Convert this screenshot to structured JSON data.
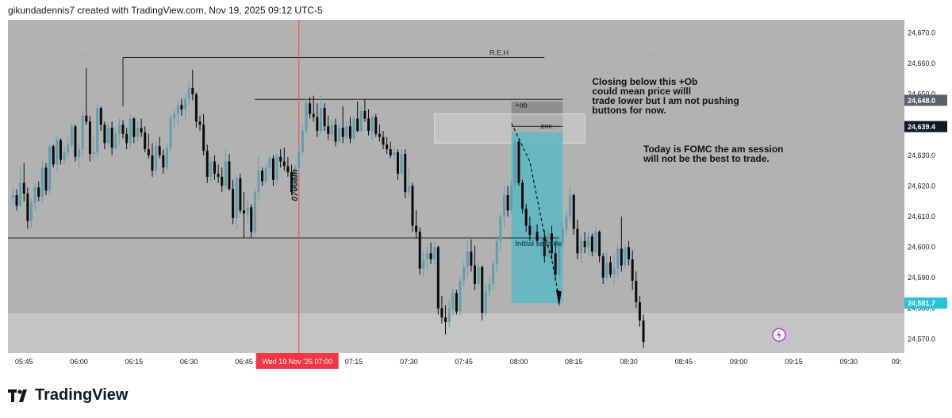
{
  "header": {
    "credit": "gikundadennis7 created with TradingView.com, Nov 19, 2025 09:12 UTC-5"
  },
  "brand": {
    "name": "TradingView",
    "logo_icon": "tradingview-logo-icon"
  },
  "colors": {
    "chart_bg": "#b2b2b2",
    "lower_band_bg": "#c4c4c4",
    "candle_up": "#5f9fae",
    "candle_down": "#0b0b0b",
    "box_fill": "#5ab7c6",
    "ob_box_fill": "#8f8f8f",
    "brk_box_fill": "#d4d4d4",
    "vline": "#ff3b3b",
    "label_bg_dark": "#131722",
    "label_bg_gray": "#5d606b",
    "label_bg_cyan": "#25c3d6"
  },
  "annotations": {
    "reh": "R.E.H",
    "ob": "+ob",
    "brk": "BRK.",
    "initial_sellside": "Initial sellside",
    "time_0700": "0700am",
    "note1": [
      "Closing below this +Ob",
      "could mean price willl",
      "trade lower but I am not pushing",
      "buttons for now."
    ],
    "note2": [
      "Today is FOMC the am session",
      "will not be the best to trade."
    ]
  },
  "price_labels": {
    "ob_level": "24,648.0",
    "brk_level": "24,639.4",
    "bottom_level": "24,581.7"
  },
  "x_axis_highlight": "Wed 19 Nov '25   07:00",
  "chart_data": {
    "type": "candlestick",
    "title": "",
    "xlabel": "",
    "ylabel": "",
    "ylim": [
      24565.4,
      24674.3
    ],
    "y_ticks": [
      "24,670.0",
      "24,660.0",
      "24,650.0",
      "24,640.0",
      "24,630.0",
      "24,620.0",
      "24,610.0",
      "24,600.0",
      "24,590.0",
      "24,580.0",
      "24,570.0"
    ],
    "x_ticks": [
      "05:45",
      "06:00",
      "06:15",
      "06:30",
      "06:45",
      "07:00",
      "07:15",
      "07:30",
      "07:45",
      "08:00",
      "08:15",
      "08:30",
      "08:45",
      "09:00",
      "09:15",
      "09:30",
      "09:"
    ],
    "x_start": "05:42",
    "minutes_per_candle": 1,
    "candles": [
      {
        "o": 24616.0,
        "h": 24619.0,
        "l": 24614.0,
        "c": 24617.0
      },
      {
        "o": 24617.0,
        "h": 24619.0,
        "l": 24612.0,
        "c": 24613.5
      },
      {
        "o": 24613.5,
        "h": 24626.0,
        "l": 24613.0,
        "c": 24621.0
      },
      {
        "o": 24621.0,
        "h": 24627.5,
        "l": 24615.0,
        "c": 24617.5
      },
      {
        "o": 24617.5,
        "h": 24619.5,
        "l": 24606.0,
        "c": 24608.5
      },
      {
        "o": 24608.5,
        "h": 24616.0,
        "l": 24606.5,
        "c": 24614.5
      },
      {
        "o": 24614.5,
        "h": 24621.0,
        "l": 24612.0,
        "c": 24619.5
      },
      {
        "o": 24619.5,
        "h": 24621.5,
        "l": 24615.0,
        "c": 24616.5
      },
      {
        "o": 24616.5,
        "h": 24628.5,
        "l": 24614.5,
        "c": 24626.0
      },
      {
        "o": 24626.0,
        "h": 24627.5,
        "l": 24617.0,
        "c": 24618.5
      },
      {
        "o": 24618.5,
        "h": 24633.5,
        "l": 24617.5,
        "c": 24633.0
      },
      {
        "o": 24633.0,
        "h": 24633.5,
        "l": 24626.0,
        "c": 24627.0
      },
      {
        "o": 24627.0,
        "h": 24636.5,
        "l": 24624.5,
        "c": 24635.0
      },
      {
        "o": 24635.0,
        "h": 24635.5,
        "l": 24627.0,
        "c": 24628.5
      },
      {
        "o": 24628.5,
        "h": 24633.0,
        "l": 24627.0,
        "c": 24631.0
      },
      {
        "o": 24631.0,
        "h": 24636.0,
        "l": 24629.0,
        "c": 24633.5
      },
      {
        "o": 24633.5,
        "h": 24640.5,
        "l": 24632.5,
        "c": 24639.5
      },
      {
        "o": 24639.5,
        "h": 24640.0,
        "l": 24628.0,
        "c": 24629.5
      },
      {
        "o": 24629.5,
        "h": 24634.0,
        "l": 24626.0,
        "c": 24632.0
      },
      {
        "o": 24632.0,
        "h": 24644.5,
        "l": 24630.0,
        "c": 24643.0
      },
      {
        "o": 24643.0,
        "h": 24658.5,
        "l": 24640.0,
        "c": 24641.0
      },
      {
        "o": 24641.0,
        "h": 24643.0,
        "l": 24628.0,
        "c": 24630.5
      },
      {
        "o": 24630.5,
        "h": 24636.0,
        "l": 24628.0,
        "c": 24631.0
      },
      {
        "o": 24631.0,
        "h": 24647.0,
        "l": 24629.0,
        "c": 24645.5
      },
      {
        "o": 24645.5,
        "h": 24646.0,
        "l": 24638.0,
        "c": 24640.0
      },
      {
        "o": 24640.0,
        "h": 24641.0,
        "l": 24632.0,
        "c": 24634.0
      },
      {
        "o": 24634.0,
        "h": 24640.5,
        "l": 24633.0,
        "c": 24639.0
      },
      {
        "o": 24639.0,
        "h": 24641.0,
        "l": 24630.0,
        "c": 24632.5
      },
      {
        "o": 24632.5,
        "h": 24638.5,
        "l": 24631.5,
        "c": 24637.0
      },
      {
        "o": 24637.0,
        "h": 24642.0,
        "l": 24634.0,
        "c": 24640.0
      },
      {
        "o": 24640.0,
        "h": 24641.5,
        "l": 24635.5,
        "c": 24637.0
      },
      {
        "o": 24637.0,
        "h": 24639.0,
        "l": 24632.0,
        "c": 24634.0
      },
      {
        "o": 24634.0,
        "h": 24643.5,
        "l": 24632.5,
        "c": 24642.0
      },
      {
        "o": 24642.0,
        "h": 24642.5,
        "l": 24634.0,
        "c": 24636.0
      },
      {
        "o": 24636.0,
        "h": 24641.0,
        "l": 24634.5,
        "c": 24639.0
      },
      {
        "o": 24639.0,
        "h": 24642.0,
        "l": 24636.0,
        "c": 24637.5
      },
      {
        "o": 24637.5,
        "h": 24639.5,
        "l": 24631.0,
        "c": 24632.0
      },
      {
        "o": 24632.0,
        "h": 24637.0,
        "l": 24629.0,
        "c": 24630.0
      },
      {
        "o": 24630.0,
        "h": 24634.0,
        "l": 24623.0,
        "c": 24625.0
      },
      {
        "o": 24625.0,
        "h": 24634.5,
        "l": 24623.5,
        "c": 24633.0
      },
      {
        "o": 24633.0,
        "h": 24636.0,
        "l": 24629.0,
        "c": 24630.0
      },
      {
        "o": 24630.0,
        "h": 24632.0,
        "l": 24624.0,
        "c": 24626.0
      },
      {
        "o": 24626.0,
        "h": 24634.0,
        "l": 24625.0,
        "c": 24632.5
      },
      {
        "o": 24632.5,
        "h": 24643.5,
        "l": 24631.0,
        "c": 24642.0
      },
      {
        "o": 24642.0,
        "h": 24645.0,
        "l": 24639.0,
        "c": 24643.5
      },
      {
        "o": 24643.5,
        "h": 24648.0,
        "l": 24640.0,
        "c": 24646.5
      },
      {
        "o": 24646.5,
        "h": 24648.5,
        "l": 24643.0,
        "c": 24645.0
      },
      {
        "o": 24645.0,
        "h": 24650.5,
        "l": 24642.0,
        "c": 24648.5
      },
      {
        "o": 24648.5,
        "h": 24654.0,
        "l": 24646.5,
        "c": 24652.0
      },
      {
        "o": 24652.0,
        "h": 24658.0,
        "l": 24648.0,
        "c": 24650.0
      },
      {
        "o": 24650.0,
        "h": 24650.5,
        "l": 24639.0,
        "c": 24641.0
      },
      {
        "o": 24641.0,
        "h": 24643.0,
        "l": 24638.0,
        "c": 24640.0
      },
      {
        "o": 24640.0,
        "h": 24643.5,
        "l": 24630.0,
        "c": 24631.5
      },
      {
        "o": 24631.5,
        "h": 24633.5,
        "l": 24621.0,
        "c": 24623.0
      },
      {
        "o": 24623.0,
        "h": 24629.5,
        "l": 24621.5,
        "c": 24628.0
      },
      {
        "o": 24628.0,
        "h": 24630.0,
        "l": 24622.0,
        "c": 24624.0
      },
      {
        "o": 24624.0,
        "h": 24627.0,
        "l": 24621.0,
        "c": 24623.0
      },
      {
        "o": 24623.0,
        "h": 24626.0,
        "l": 24618.0,
        "c": 24620.0
      },
      {
        "o": 24620.0,
        "h": 24632.0,
        "l": 24619.0,
        "c": 24628.0
      },
      {
        "o": 24628.0,
        "h": 24630.5,
        "l": 24618.5,
        "c": 24619.0
      },
      {
        "o": 24619.0,
        "h": 24622.0,
        "l": 24607.5,
        "c": 24609.5
      },
      {
        "o": 24609.5,
        "h": 24623.5,
        "l": 24606.0,
        "c": 24622.5
      },
      {
        "o": 24622.5,
        "h": 24624.0,
        "l": 24611.0,
        "c": 24612.0
      },
      {
        "o": 24612.0,
        "h": 24618.0,
        "l": 24603.0,
        "c": 24611.0
      },
      {
        "o": 24611.0,
        "h": 24615.5,
        "l": 24608.0,
        "c": 24613.0
      },
      {
        "o": 24613.0,
        "h": 24614.0,
        "l": 24603.0,
        "c": 24605.0
      },
      {
        "o": 24605.0,
        "h": 24619.0,
        "l": 24604.0,
        "c": 24618.0
      },
      {
        "o": 24618.0,
        "h": 24629.5,
        "l": 24615.0,
        "c": 24625.0
      },
      {
        "o": 24625.0,
        "h": 24626.0,
        "l": 24620.0,
        "c": 24621.5
      },
      {
        "o": 24621.5,
        "h": 24627.5,
        "l": 24620.5,
        "c": 24626.0
      },
      {
        "o": 24626.0,
        "h": 24630.0,
        "l": 24623.5,
        "c": 24629.0
      },
      {
        "o": 24629.0,
        "h": 24630.0,
        "l": 24620.0,
        "c": 24622.0
      },
      {
        "o": 24622.0,
        "h": 24630.5,
        "l": 24620.0,
        "c": 24629.5
      },
      {
        "o": 24629.5,
        "h": 24632.0,
        "l": 24626.0,
        "c": 24628.0
      },
      {
        "o": 24628.0,
        "h": 24632.5,
        "l": 24625.0,
        "c": 24626.5
      },
      {
        "o": 24626.5,
        "h": 24629.5,
        "l": 24623.0,
        "c": 24624.5
      },
      {
        "o": 24624.5,
        "h": 24627.0,
        "l": 24617.0,
        "c": 24618.0
      },
      {
        "o": 24618.0,
        "h": 24627.0,
        "l": 24617.5,
        "c": 24626.0
      },
      {
        "o": 24626.0,
        "h": 24632.5,
        "l": 24625.0,
        "c": 24631.0
      },
      {
        "o": 24631.0,
        "h": 24640.0,
        "l": 24630.0,
        "c": 24638.0
      },
      {
        "o": 24638.0,
        "h": 24648.5,
        "l": 24637.5,
        "c": 24647.0
      },
      {
        "o": 24647.0,
        "h": 24649.0,
        "l": 24642.0,
        "c": 24643.5
      },
      {
        "o": 24643.5,
        "h": 24649.5,
        "l": 24641.0,
        "c": 24642.5
      },
      {
        "o": 24642.5,
        "h": 24647.0,
        "l": 24636.0,
        "c": 24638.0
      },
      {
        "o": 24638.0,
        "h": 24649.5,
        "l": 24637.0,
        "c": 24645.5
      },
      {
        "o": 24645.5,
        "h": 24647.0,
        "l": 24638.0,
        "c": 24639.5
      },
      {
        "o": 24639.5,
        "h": 24643.0,
        "l": 24635.0,
        "c": 24637.0
      },
      {
        "o": 24637.0,
        "h": 24641.5,
        "l": 24634.5,
        "c": 24640.0
      },
      {
        "o": 24640.0,
        "h": 24642.0,
        "l": 24633.0,
        "c": 24634.5
      },
      {
        "o": 24634.5,
        "h": 24640.5,
        "l": 24634.0,
        "c": 24639.0
      },
      {
        "o": 24639.0,
        "h": 24646.0,
        "l": 24634.0,
        "c": 24636.0
      },
      {
        "o": 24636.0,
        "h": 24641.0,
        "l": 24635.0,
        "c": 24639.5
      },
      {
        "o": 24639.5,
        "h": 24642.5,
        "l": 24634.0,
        "c": 24635.5
      },
      {
        "o": 24635.5,
        "h": 24643.0,
        "l": 24635.0,
        "c": 24642.0
      },
      {
        "o": 24642.0,
        "h": 24647.5,
        "l": 24637.5,
        "c": 24638.0
      },
      {
        "o": 24638.0,
        "h": 24646.0,
        "l": 24637.5,
        "c": 24644.5
      },
      {
        "o": 24644.5,
        "h": 24648.5,
        "l": 24641.0,
        "c": 24642.0
      },
      {
        "o": 24642.0,
        "h": 24645.0,
        "l": 24636.5,
        "c": 24638.0
      },
      {
        "o": 24638.0,
        "h": 24643.5,
        "l": 24635.0,
        "c": 24642.5
      },
      {
        "o": 24642.5,
        "h": 24643.5,
        "l": 24636.0,
        "c": 24637.0
      },
      {
        "o": 24637.0,
        "h": 24640.0,
        "l": 24634.5,
        "c": 24636.0
      },
      {
        "o": 24636.0,
        "h": 24638.0,
        "l": 24632.0,
        "c": 24633.5
      },
      {
        "o": 24633.5,
        "h": 24636.0,
        "l": 24630.5,
        "c": 24632.0
      },
      {
        "o": 24632.0,
        "h": 24634.5,
        "l": 24629.0,
        "c": 24630.0
      },
      {
        "o": 24630.0,
        "h": 24633.0,
        "l": 24628.0,
        "c": 24631.0
      },
      {
        "o": 24631.0,
        "h": 24632.0,
        "l": 24622.0,
        "c": 24624.0
      },
      {
        "o": 24624.0,
        "h": 24632.0,
        "l": 24623.5,
        "c": 24630.5
      },
      {
        "o": 24630.5,
        "h": 24632.0,
        "l": 24616.0,
        "c": 24618.0
      },
      {
        "o": 24618.0,
        "h": 24626.0,
        "l": 24616.5,
        "c": 24620.0
      },
      {
        "o": 24620.0,
        "h": 24621.0,
        "l": 24605.0,
        "c": 24607.0
      },
      {
        "o": 24607.0,
        "h": 24612.0,
        "l": 24603.0,
        "c": 24605.0
      },
      {
        "o": 24605.0,
        "h": 24606.5,
        "l": 24591.0,
        "c": 24593.0
      },
      {
        "o": 24593.0,
        "h": 24599.0,
        "l": 24590.0,
        "c": 24596.0
      },
      {
        "o": 24596.0,
        "h": 24600.0,
        "l": 24592.5,
        "c": 24598.0
      },
      {
        "o": 24598.0,
        "h": 24601.5,
        "l": 24594.5,
        "c": 24596.0
      },
      {
        "o": 24596.0,
        "h": 24602.0,
        "l": 24594.0,
        "c": 24600.0
      },
      {
        "o": 24600.0,
        "h": 24600.5,
        "l": 24578.0,
        "c": 24580.0
      },
      {
        "o": 24580.0,
        "h": 24584.0,
        "l": 24575.0,
        "c": 24577.0
      },
      {
        "o": 24577.0,
        "h": 24581.0,
        "l": 24571.5,
        "c": 24575.5
      },
      {
        "o": 24575.5,
        "h": 24583.0,
        "l": 24574.0,
        "c": 24580.0
      },
      {
        "o": 24580.0,
        "h": 24586.5,
        "l": 24577.5,
        "c": 24585.0
      },
      {
        "o": 24585.0,
        "h": 24586.0,
        "l": 24578.0,
        "c": 24579.0
      },
      {
        "o": 24579.0,
        "h": 24590.5,
        "l": 24577.5,
        "c": 24589.0
      },
      {
        "o": 24589.0,
        "h": 24595.0,
        "l": 24587.0,
        "c": 24593.5
      },
      {
        "o": 24593.5,
        "h": 24602.0,
        "l": 24590.0,
        "c": 24598.5
      },
      {
        "o": 24598.5,
        "h": 24602.5,
        "l": 24592.0,
        "c": 24594.0
      },
      {
        "o": 24594.0,
        "h": 24600.5,
        "l": 24586.0,
        "c": 24588.0
      },
      {
        "o": 24588.0,
        "h": 24595.0,
        "l": 24586.5,
        "c": 24593.5
      },
      {
        "o": 24593.5,
        "h": 24594.0,
        "l": 24576.0,
        "c": 24578.5
      },
      {
        "o": 24578.5,
        "h": 24588.0,
        "l": 24577.5,
        "c": 24585.5
      },
      {
        "o": 24585.5,
        "h": 24590.0,
        "l": 24584.0,
        "c": 24588.0
      },
      {
        "o": 24588.0,
        "h": 24596.0,
        "l": 24586.0,
        "c": 24594.5
      },
      {
        "o": 24594.5,
        "h": 24604.0,
        "l": 24592.0,
        "c": 24602.0
      },
      {
        "o": 24602.0,
        "h": 24611.0,
        "l": 24599.0,
        "c": 24610.0
      },
      {
        "o": 24610.0,
        "h": 24620.0,
        "l": 24606.0,
        "c": 24617.0
      },
      {
        "o": 24617.0,
        "h": 24620.0,
        "l": 24610.0,
        "c": 24612.0
      },
      {
        "o": 24612.0,
        "h": 24622.0,
        "l": 24611.0,
        "c": 24620.0
      },
      {
        "o": 24620.0,
        "h": 24635.5,
        "l": 24619.0,
        "c": 24634.5
      },
      {
        "o": 24634.5,
        "h": 24635.0,
        "l": 24620.0,
        "c": 24621.0
      },
      {
        "o": 24621.0,
        "h": 24622.0,
        "l": 24611.0,
        "c": 24612.5
      },
      {
        "o": 24612.5,
        "h": 24614.0,
        "l": 24605.0,
        "c": 24607.0
      },
      {
        "o": 24607.0,
        "h": 24610.0,
        "l": 24602.0,
        "c": 24604.0
      },
      {
        "o": 24604.0,
        "h": 24607.0,
        "l": 24600.0,
        "c": 24605.0
      },
      {
        "o": 24605.0,
        "h": 24607.5,
        "l": 24601.0,
        "c": 24602.0
      },
      {
        "o": 24602.0,
        "h": 24605.0,
        "l": 24597.5,
        "c": 24603.0
      },
      {
        "o": 24603.0,
        "h": 24605.5,
        "l": 24595.0,
        "c": 24597.0
      },
      {
        "o": 24597.0,
        "h": 24606.0,
        "l": 24596.0,
        "c": 24604.5
      },
      {
        "o": 24604.5,
        "h": 24607.0,
        "l": 24596.0,
        "c": 24598.0
      },
      {
        "o": 24598.0,
        "h": 24602.0,
        "l": 24589.0,
        "c": 24591.0
      },
      {
        "o": 24591.0,
        "h": 24603.0,
        "l": 24590.0,
        "c": 24601.5
      },
      {
        "o": 24601.5,
        "h": 24608.0,
        "l": 24599.0,
        "c": 24606.0
      },
      {
        "o": 24606.0,
        "h": 24612.0,
        "l": 24604.0,
        "c": 24610.0
      },
      {
        "o": 24610.0,
        "h": 24619.5,
        "l": 24608.0,
        "c": 24617.0
      },
      {
        "o": 24617.0,
        "h": 24617.5,
        "l": 24604.0,
        "c": 24606.0
      },
      {
        "o": 24606.0,
        "h": 24609.0,
        "l": 24596.0,
        "c": 24598.0
      },
      {
        "o": 24598.0,
        "h": 24604.0,
        "l": 24595.0,
        "c": 24602.0
      },
      {
        "o": 24602.0,
        "h": 24605.0,
        "l": 24598.0,
        "c": 24600.0
      },
      {
        "o": 24600.0,
        "h": 24605.0,
        "l": 24597.0,
        "c": 24603.5
      },
      {
        "o": 24603.5,
        "h": 24604.5,
        "l": 24597.0,
        "c": 24598.5
      },
      {
        "o": 24598.5,
        "h": 24607.0,
        "l": 24597.5,
        "c": 24605.0
      },
      {
        "o": 24605.0,
        "h": 24605.5,
        "l": 24595.0,
        "c": 24597.0
      },
      {
        "o": 24597.0,
        "h": 24598.0,
        "l": 24588.0,
        "c": 24590.0
      },
      {
        "o": 24590.0,
        "h": 24598.5,
        "l": 24589.0,
        "c": 24595.0
      },
      {
        "o": 24595.0,
        "h": 24597.0,
        "l": 24590.0,
        "c": 24591.0
      },
      {
        "o": 24591.0,
        "h": 24598.0,
        "l": 24588.0,
        "c": 24593.0
      },
      {
        "o": 24593.0,
        "h": 24601.0,
        "l": 24590.0,
        "c": 24599.5
      },
      {
        "o": 24599.5,
        "h": 24610.0,
        "l": 24592.0,
        "c": 24594.0
      },
      {
        "o": 24594.0,
        "h": 24601.0,
        "l": 24593.0,
        "c": 24600.0
      },
      {
        "o": 24600.0,
        "h": 24602.0,
        "l": 24594.0,
        "c": 24596.0
      },
      {
        "o": 24596.0,
        "h": 24599.0,
        "l": 24586.0,
        "c": 24589.0
      },
      {
        "o": 24589.0,
        "h": 24592.0,
        "l": 24580.0,
        "c": 24582.0
      },
      {
        "o": 24582.0,
        "h": 24584.0,
        "l": 24574.0,
        "c": 24576.0
      },
      {
        "o": 24576.0,
        "h": 24578.0,
        "l": 24567.0,
        "c": 24569.0
      }
    ]
  }
}
